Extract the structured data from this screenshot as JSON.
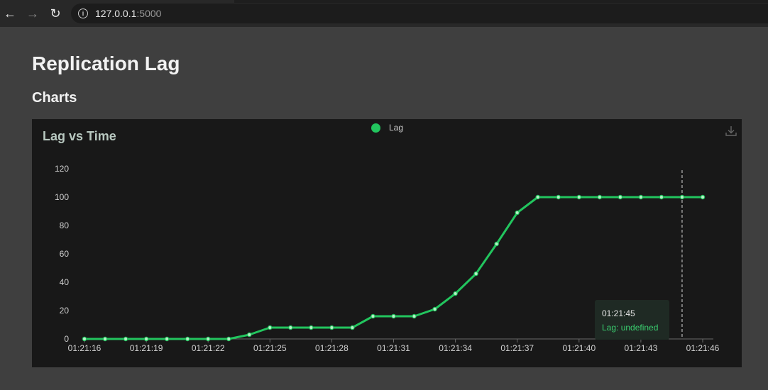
{
  "browser": {
    "url_host": "127.0.0.1",
    "url_port": ":5000"
  },
  "page": {
    "title": "Replication Lag",
    "section": "Charts"
  },
  "colors": {
    "series": "#22c55e",
    "card_bg": "#181818",
    "page_bg": "#3f3f3f"
  },
  "tooltip": {
    "time": "01:21:45",
    "value": "Lag: undefined"
  },
  "chart_data": {
    "type": "line",
    "title": "Lag vs Time",
    "xlabel": "",
    "ylabel": "",
    "legend": "top-center",
    "grid": false,
    "ylim": [
      0,
      120
    ],
    "yticks": [
      0,
      20,
      40,
      60,
      80,
      100,
      120
    ],
    "x": [
      "01:21:16",
      "01:21:17",
      "01:21:18",
      "01:21:19",
      "01:21:20",
      "01:21:21",
      "01:21:22",
      "01:21:23",
      "01:21:24",
      "01:21:25",
      "01:21:26",
      "01:21:27",
      "01:21:28",
      "01:21:29",
      "01:21:30",
      "01:21:31",
      "01:21:32",
      "01:21:33",
      "01:21:34",
      "01:21:35",
      "01:21:36",
      "01:21:37",
      "01:21:38",
      "01:21:39",
      "01:21:40",
      "01:21:41",
      "01:21:42",
      "01:21:43",
      "01:21:44",
      "01:21:45",
      "01:21:46"
    ],
    "xticks": [
      "01:21:16",
      "01:21:19",
      "01:21:22",
      "01:21:25",
      "01:21:28",
      "01:21:31",
      "01:21:34",
      "01:21:37",
      "01:21:40",
      "01:21:43",
      "01:21:46"
    ],
    "series": [
      {
        "name": "Lag",
        "values": [
          0,
          0,
          0,
          0,
          0,
          0,
          0,
          0,
          3,
          8,
          8,
          8,
          8,
          8,
          16,
          16,
          16,
          21,
          32,
          46,
          67,
          89,
          100,
          100,
          100,
          100,
          100,
          100,
          100,
          100,
          100
        ]
      }
    ],
    "hover_x": "01:21:45"
  }
}
